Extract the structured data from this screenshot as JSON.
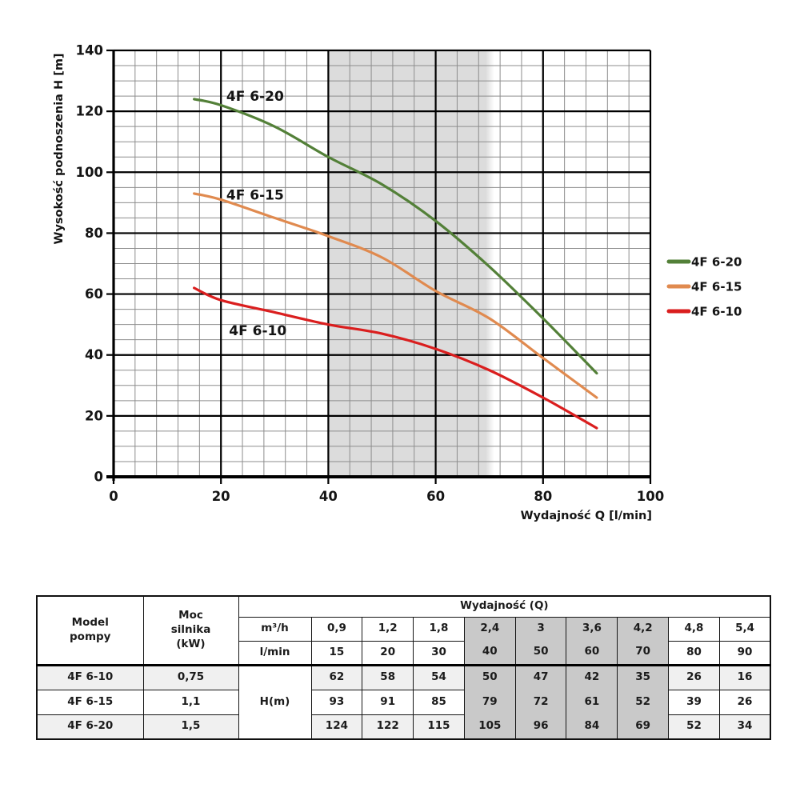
{
  "chart_data": {
    "type": "line",
    "title": "",
    "xlabel": "Wydajność Q [l/min]",
    "ylabel": "Wysokość podnoszenia H [m]",
    "xlim": [
      0,
      100
    ],
    "ylim": [
      0,
      140
    ],
    "x_major_step": 20,
    "x_minor_step": 4,
    "y_major_step": 20,
    "y_minor_step": 5,
    "grid": "on",
    "legend_position": "right",
    "x": [
      15,
      20,
      30,
      40,
      50,
      60,
      70,
      80,
      90
    ],
    "series": [
      {
        "name": "4F 6-20",
        "color": "#538038",
        "values": [
          124,
          122,
          115,
          105,
          96,
          84,
          69,
          52,
          34
        ]
      },
      {
        "name": "4F 6-15",
        "color": "#e08a4f",
        "values": [
          93,
          91,
          85,
          79,
          72,
          61,
          52,
          39,
          26
        ]
      },
      {
        "name": "4F 6-10",
        "color": "#da1e1e",
        "values": [
          62,
          58,
          54,
          50,
          47,
          42,
          35,
          26,
          16
        ]
      }
    ],
    "highlight_band": {
      "from": 40,
      "to": 70,
      "color": "#dcdcdc"
    },
    "annotations": [
      {
        "text": "4F 6-20",
        "q": 21,
        "h": 123.5
      },
      {
        "text": "4F 6-15",
        "q": 21,
        "h": 91
      },
      {
        "text": "4F 6-10",
        "q": 21.5,
        "h": 46.5
      }
    ],
    "colors": {
      "minor_grid": "#8d8d8d",
      "major_grid": "#000000",
      "axis": "#000000",
      "text": "#141414"
    }
  },
  "table": {
    "col_model": "Model\npompy",
    "col_power": "Moc\nsilnika\n(kW)",
    "col_capacity": "Wydajność (Q)",
    "unit_m3h": "m³/h",
    "unit_lmin": "l/min",
    "unit_head": "H(m)",
    "m3h_values": [
      "0,9",
      "1,2",
      "1,8",
      "2,4",
      "3",
      "3,6",
      "4,2",
      "4,8",
      "5,4"
    ],
    "lmin_values": [
      "15",
      "20",
      "30",
      "40",
      "50",
      "60",
      "70",
      "80",
      "90"
    ],
    "rows": [
      {
        "model": "4F 6-10",
        "power": "0,75",
        "heads": [
          "62",
          "58",
          "54",
          "50",
          "47",
          "42",
          "35",
          "26",
          "16"
        ]
      },
      {
        "model": "4F 6-15",
        "power": "1,1",
        "heads": [
          "93",
          "91",
          "85",
          "79",
          "72",
          "61",
          "52",
          "39",
          "26"
        ]
      },
      {
        "model": "4F 6-20",
        "power": "1,5",
        "heads": [
          "124",
          "122",
          "115",
          "105",
          "96",
          "84",
          "69",
          "52",
          "34"
        ]
      }
    ]
  }
}
